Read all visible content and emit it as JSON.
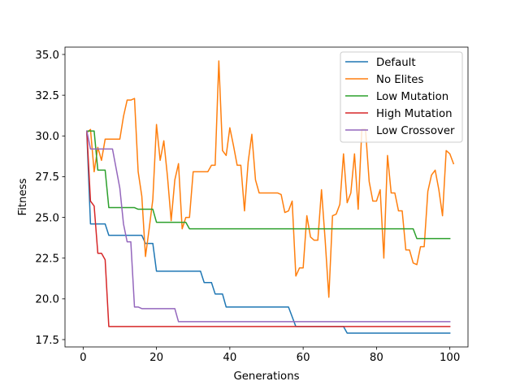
{
  "chart_data": {
    "type": "line",
    "title": "",
    "xlabel": "Generations",
    "ylabel": "Fitness",
    "xlim": [
      -4.95,
      104.95
    ],
    "ylim": [
      17.05,
      35.45
    ],
    "xticks": [
      0,
      20,
      40,
      60,
      80,
      100
    ],
    "yticks": [
      17.5,
      20.0,
      22.5,
      25.0,
      27.5,
      30.0,
      32.5,
      35.0
    ],
    "xtick_labels": [
      "0",
      "20",
      "40",
      "60",
      "80",
      "100"
    ],
    "ytick_labels": [
      "17.5",
      "20.0",
      "22.5",
      "25.0",
      "27.5",
      "30.0",
      "32.5",
      "35.0"
    ],
    "grid": false,
    "legend": "top-right",
    "series": [
      {
        "name": "Default",
        "color": "#1f77b4",
        "points": [
          [
            1,
            30.2
          ],
          [
            2,
            24.6
          ],
          [
            3,
            24.6
          ],
          [
            4,
            24.6
          ],
          [
            5,
            24.6
          ],
          [
            6,
            24.6
          ],
          [
            7,
            23.9
          ],
          [
            8,
            23.9
          ],
          [
            9,
            23.9
          ],
          [
            10,
            23.9
          ],
          [
            11,
            23.9
          ],
          [
            12,
            23.9
          ],
          [
            13,
            23.9
          ],
          [
            14,
            23.9
          ],
          [
            15,
            23.9
          ],
          [
            16,
            23.9
          ],
          [
            17,
            23.4
          ],
          [
            18,
            23.4
          ],
          [
            19,
            23.4
          ],
          [
            20,
            21.7
          ],
          [
            21,
            21.7
          ],
          [
            22,
            21.7
          ],
          [
            23,
            21.7
          ],
          [
            24,
            21.7
          ],
          [
            25,
            21.7
          ],
          [
            26,
            21.7
          ],
          [
            27,
            21.7
          ],
          [
            28,
            21.7
          ],
          [
            29,
            21.7
          ],
          [
            30,
            21.7
          ],
          [
            31,
            21.7
          ],
          [
            32,
            21.7
          ],
          [
            33,
            21.0
          ],
          [
            34,
            21.0
          ],
          [
            35,
            21.0
          ],
          [
            36,
            20.3
          ],
          [
            37,
            20.3
          ],
          [
            38,
            20.3
          ],
          [
            39,
            19.5
          ],
          [
            40,
            19.5
          ],
          [
            41,
            19.5
          ],
          [
            42,
            19.5
          ],
          [
            43,
            19.5
          ],
          [
            44,
            19.5
          ],
          [
            45,
            19.5
          ],
          [
            46,
            19.5
          ],
          [
            47,
            19.5
          ],
          [
            48,
            19.5
          ],
          [
            49,
            19.5
          ],
          [
            50,
            19.5
          ],
          [
            51,
            19.5
          ],
          [
            52,
            19.5
          ],
          [
            53,
            19.5
          ],
          [
            54,
            19.5
          ],
          [
            55,
            19.5
          ],
          [
            56,
            19.5
          ],
          [
            57,
            18.9
          ],
          [
            58,
            18.3
          ],
          [
            59,
            18.3
          ],
          [
            60,
            18.3
          ],
          [
            61,
            18.3
          ],
          [
            62,
            18.3
          ],
          [
            63,
            18.3
          ],
          [
            64,
            18.3
          ],
          [
            65,
            18.3
          ],
          [
            66,
            18.3
          ],
          [
            67,
            18.3
          ],
          [
            68,
            18.3
          ],
          [
            69,
            18.3
          ],
          [
            70,
            18.3
          ],
          [
            71,
            18.3
          ],
          [
            72,
            17.9
          ],
          [
            73,
            17.9
          ],
          [
            74,
            17.9
          ],
          [
            75,
            17.9
          ],
          [
            76,
            17.9
          ],
          [
            77,
            17.9
          ],
          [
            78,
            17.9
          ],
          [
            79,
            17.9
          ],
          [
            80,
            17.9
          ],
          [
            85,
            17.9
          ],
          [
            90,
            17.9
          ],
          [
            95,
            17.9
          ],
          [
            100,
            17.9
          ]
        ]
      },
      {
        "name": "No Elites",
        "color": "#ff7f0e",
        "points": [
          [
            1,
            30.2
          ],
          [
            2,
            30.4
          ],
          [
            3,
            27.8
          ],
          [
            4,
            29.3
          ],
          [
            5,
            28.5
          ],
          [
            6,
            29.8
          ],
          [
            7,
            29.8
          ],
          [
            8,
            29.8
          ],
          [
            9,
            29.8
          ],
          [
            10,
            29.8
          ],
          [
            11,
            31.2
          ],
          [
            12,
            32.2
          ],
          [
            13,
            32.2
          ],
          [
            14,
            32.3
          ],
          [
            15,
            27.8
          ],
          [
            16,
            26.3
          ],
          [
            17,
            22.6
          ],
          [
            18,
            24.3
          ],
          [
            19,
            26.1
          ],
          [
            20,
            30.7
          ],
          [
            21,
            28.5
          ],
          [
            22,
            29.7
          ],
          [
            23,
            27.5
          ],
          [
            24,
            24.8
          ],
          [
            25,
            27.3
          ],
          [
            26,
            28.3
          ],
          [
            27,
            24.3
          ],
          [
            28,
            25.0
          ],
          [
            29,
            25.0
          ],
          [
            30,
            27.8
          ],
          [
            31,
            27.8
          ],
          [
            32,
            27.8
          ],
          [
            33,
            27.8
          ],
          [
            34,
            27.8
          ],
          [
            35,
            28.2
          ],
          [
            36,
            28.2
          ],
          [
            37,
            34.6
          ],
          [
            38,
            29.1
          ],
          [
            39,
            28.8
          ],
          [
            40,
            30.5
          ],
          [
            41,
            29.4
          ],
          [
            42,
            28.2
          ],
          [
            43,
            28.2
          ],
          [
            44,
            25.4
          ],
          [
            45,
            28.4
          ],
          [
            46,
            30.1
          ],
          [
            47,
            27.3
          ],
          [
            48,
            26.5
          ],
          [
            49,
            26.5
          ],
          [
            50,
            26.5
          ],
          [
            51,
            26.5
          ],
          [
            52,
            26.5
          ],
          [
            53,
            26.5
          ],
          [
            54,
            26.4
          ],
          [
            55,
            25.3
          ],
          [
            56,
            25.4
          ],
          [
            57,
            26.0
          ],
          [
            58,
            21.4
          ],
          [
            59,
            21.9
          ],
          [
            60,
            21.9
          ],
          [
            61,
            25.1
          ],
          [
            62,
            23.8
          ],
          [
            63,
            23.6
          ],
          [
            64,
            23.6
          ],
          [
            65,
            26.7
          ],
          [
            66,
            23.6
          ],
          [
            67,
            20.1
          ],
          [
            68,
            25.1
          ],
          [
            69,
            25.2
          ],
          [
            70,
            25.8
          ],
          [
            71,
            28.9
          ],
          [
            72,
            25.9
          ],
          [
            73,
            26.5
          ],
          [
            74,
            28.9
          ],
          [
            75,
            25.5
          ],
          [
            76,
            30.4
          ],
          [
            77,
            30.4
          ],
          [
            78,
            27.2
          ],
          [
            79,
            26.0
          ],
          [
            80,
            26.0
          ],
          [
            81,
            26.7
          ],
          [
            82,
            22.5
          ],
          [
            83,
            28.8
          ],
          [
            84,
            26.5
          ],
          [
            85,
            26.5
          ],
          [
            86,
            25.4
          ],
          [
            87,
            25.4
          ],
          [
            88,
            23.0
          ],
          [
            89,
            23.0
          ],
          [
            90,
            22.2
          ],
          [
            91,
            22.1
          ],
          [
            92,
            23.2
          ],
          [
            93,
            23.2
          ],
          [
            94,
            26.6
          ],
          [
            95,
            27.6
          ],
          [
            96,
            27.9
          ],
          [
            97,
            26.7
          ],
          [
            98,
            25.1
          ],
          [
            99,
            29.1
          ],
          [
            100,
            28.9
          ],
          [
            101,
            28.3
          ]
        ]
      },
      {
        "name": "Low Mutation",
        "color": "#2ca02c",
        "points": [
          [
            1,
            30.3
          ],
          [
            2,
            30.3
          ],
          [
            3,
            30.3
          ],
          [
            4,
            27.9
          ],
          [
            5,
            27.9
          ],
          [
            6,
            27.9
          ],
          [
            7,
            25.6
          ],
          [
            8,
            25.6
          ],
          [
            9,
            25.6
          ],
          [
            10,
            25.6
          ],
          [
            11,
            25.6
          ],
          [
            12,
            25.6
          ],
          [
            13,
            25.6
          ],
          [
            14,
            25.6
          ],
          [
            15,
            25.5
          ],
          [
            16,
            25.5
          ],
          [
            17,
            25.5
          ],
          [
            18,
            25.5
          ],
          [
            19,
            25.5
          ],
          [
            20,
            24.7
          ],
          [
            21,
            24.7
          ],
          [
            22,
            24.7
          ],
          [
            23,
            24.7
          ],
          [
            24,
            24.7
          ],
          [
            25,
            24.7
          ],
          [
            26,
            24.7
          ],
          [
            27,
            24.7
          ],
          [
            28,
            24.7
          ],
          [
            29,
            24.3
          ],
          [
            30,
            24.3
          ],
          [
            40,
            24.3
          ],
          [
            50,
            24.3
          ],
          [
            60,
            24.3
          ],
          [
            70,
            24.3
          ],
          [
            80,
            24.3
          ],
          [
            90,
            24.3
          ],
          [
            91,
            23.7
          ],
          [
            92,
            23.7
          ],
          [
            95,
            23.7
          ],
          [
            100,
            23.7
          ]
        ]
      },
      {
        "name": "High Mutation",
        "color": "#d62728",
        "points": [
          [
            1,
            30.3
          ],
          [
            2,
            26.0
          ],
          [
            3,
            25.7
          ],
          [
            4,
            22.8
          ],
          [
            5,
            22.8
          ],
          [
            6,
            22.4
          ],
          [
            7,
            18.3
          ],
          [
            8,
            18.3
          ],
          [
            10,
            18.3
          ],
          [
            20,
            18.3
          ],
          [
            30,
            18.3
          ],
          [
            40,
            18.3
          ],
          [
            50,
            18.3
          ],
          [
            60,
            18.3
          ],
          [
            70,
            18.3
          ],
          [
            80,
            18.3
          ],
          [
            90,
            18.3
          ],
          [
            100,
            18.3
          ]
        ]
      },
      {
        "name": "Low Crossover",
        "color": "#9467bd",
        "points": [
          [
            1,
            30.3
          ],
          [
            2,
            29.2
          ],
          [
            3,
            29.2
          ],
          [
            4,
            29.2
          ],
          [
            5,
            29.2
          ],
          [
            6,
            29.2
          ],
          [
            7,
            29.2
          ],
          [
            8,
            29.2
          ],
          [
            9,
            28.0
          ],
          [
            10,
            26.8
          ],
          [
            11,
            24.6
          ],
          [
            12,
            23.5
          ],
          [
            13,
            23.5
          ],
          [
            14,
            19.5
          ],
          [
            15,
            19.5
          ],
          [
            16,
            19.4
          ],
          [
            17,
            19.4
          ],
          [
            18,
            19.4
          ],
          [
            19,
            19.4
          ],
          [
            20,
            19.4
          ],
          [
            21,
            19.4
          ],
          [
            22,
            19.4
          ],
          [
            23,
            19.4
          ],
          [
            24,
            19.4
          ],
          [
            25,
            19.4
          ],
          [
            26,
            18.6
          ],
          [
            27,
            18.6
          ],
          [
            30,
            18.6
          ],
          [
            40,
            18.6
          ],
          [
            50,
            18.6
          ],
          [
            60,
            18.6
          ],
          [
            70,
            18.6
          ],
          [
            80,
            18.6
          ],
          [
            90,
            18.6
          ],
          [
            100,
            18.6
          ]
        ]
      }
    ]
  }
}
